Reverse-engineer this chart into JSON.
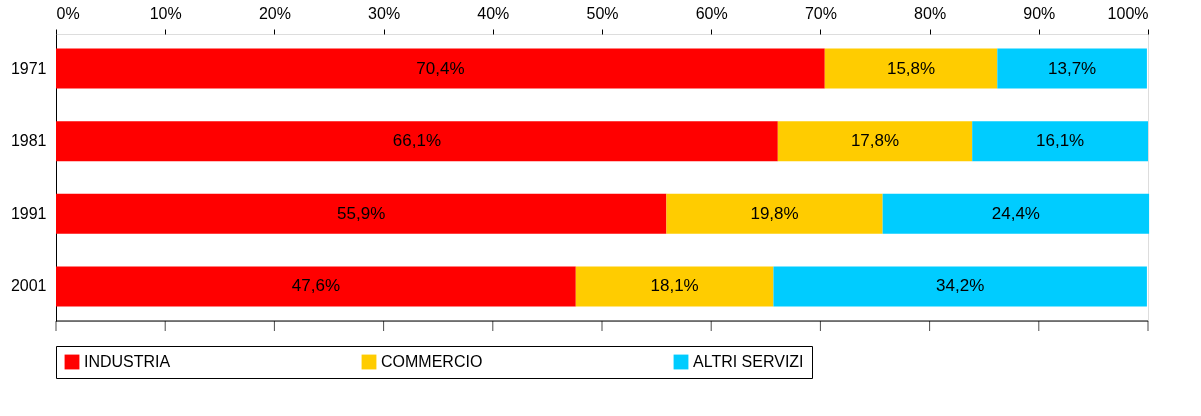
{
  "chart_data": {
    "type": "bar",
    "orientation": "horizontal",
    "stacked": true,
    "categories": [
      "1971",
      "1981",
      "1991",
      "2001"
    ],
    "series": [
      {
        "name": "INDUSTRIA",
        "color": "#ff0000",
        "values": [
          70.4,
          66.1,
          55.9,
          47.6
        ],
        "value_labels": [
          "70,4%",
          "66,1%",
          "55,9%",
          "47,6%"
        ]
      },
      {
        "name": "COMMERCIO",
        "color": "#ffcc00",
        "values": [
          15.8,
          17.8,
          19.8,
          18.1
        ],
        "value_labels": [
          "15,8%",
          "17,8%",
          "19,8%",
          "18,1%"
        ]
      },
      {
        "name": "ALTRI SERVIZI",
        "color": "#00ccff",
        "values": [
          13.7,
          16.1,
          24.4,
          34.2
        ],
        "value_labels": [
          "13,7%",
          "16,1%",
          "24,4%",
          "34,2%"
        ]
      }
    ],
    "xlim": [
      0,
      100
    ],
    "xticks": [
      {
        "value": 0,
        "label": "0%"
      },
      {
        "value": 10,
        "label": "10%"
      },
      {
        "value": 20,
        "label": "20%"
      },
      {
        "value": 30,
        "label": "30%"
      },
      {
        "value": 40,
        "label": "40%"
      },
      {
        "value": 50,
        "label": "50%"
      },
      {
        "value": 60,
        "label": "60%"
      },
      {
        "value": 70,
        "label": "70%"
      },
      {
        "value": 80,
        "label": "80%"
      },
      {
        "value": 90,
        "label": "90%"
      },
      {
        "value": 100,
        "label": "100%"
      }
    ],
    "grid": false,
    "legend": "bottom"
  }
}
